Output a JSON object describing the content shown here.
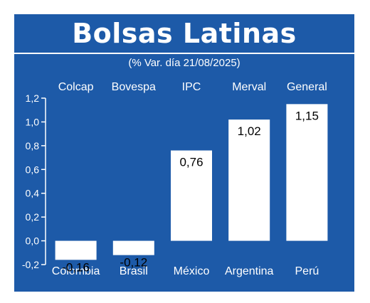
{
  "title": "Bolsas Latinas",
  "subtitle": "(% Var. día 21/08/2025)",
  "colors": {
    "background": "#1d5aa8",
    "bars": "#ffffff",
    "text": "#ffffff",
    "value_label_text": "#000000"
  },
  "chart_data": {
    "type": "bar",
    "title": "Bolsas Latinas",
    "subtitle": "(% Var. día 21/08/2025)",
    "categories": [
      "Colombia",
      "Brasil",
      "México",
      "Argentina",
      "Perú"
    ],
    "index_names": [
      "Colcap",
      "Bovespa",
      "IPC",
      "Merval",
      "General"
    ],
    "values": [
      -0.16,
      -0.12,
      0.76,
      1.02,
      1.15
    ],
    "value_labels": [
      "-0,16",
      "-0,12",
      "0,76",
      "1,02",
      "1,15"
    ],
    "ylim": [
      -0.2,
      1.2
    ],
    "yticks": [
      -0.2,
      0.0,
      0.2,
      0.4,
      0.6,
      0.8,
      1.0,
      1.2
    ],
    "ytick_labels": [
      "-0,2",
      "0,0",
      "0,2",
      "0,4",
      "0,6",
      "0,8",
      "1,0",
      "1,2"
    ],
    "grid": false,
    "legend": "none"
  }
}
